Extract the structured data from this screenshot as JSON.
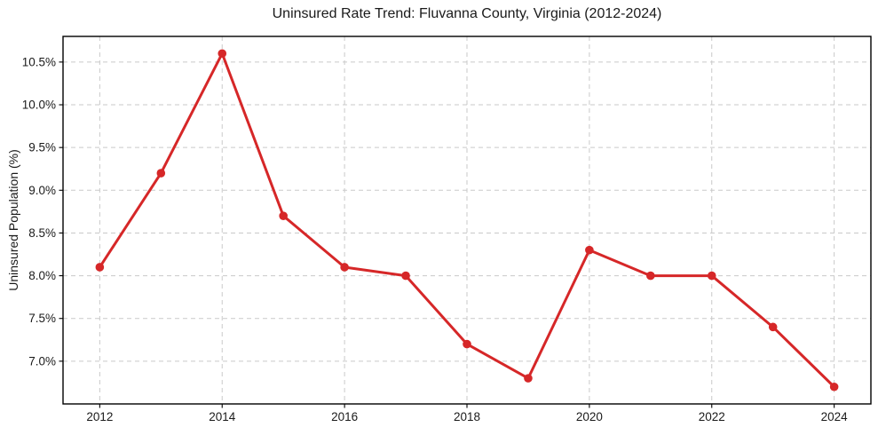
{
  "chart_data": {
    "type": "line",
    "title": "Uninsured Rate Trend: Fluvanna County, Virginia (2012-2024)",
    "ylabel": "Uninsured Population (%)",
    "xlabel": "",
    "x": [
      2012,
      2013,
      2014,
      2015,
      2016,
      2017,
      2018,
      2019,
      2020,
      2021,
      2022,
      2023,
      2024
    ],
    "values": [
      8.1,
      9.2,
      10.6,
      8.7,
      8.1,
      8.0,
      7.2,
      6.8,
      8.3,
      8.0,
      8.0,
      7.4,
      6.7
    ],
    "xlim": [
      2011.4,
      2024.6
    ],
    "ylim": [
      6.5,
      10.8
    ],
    "xticks": [
      2012,
      2014,
      2016,
      2018,
      2020,
      2022,
      2024
    ],
    "xtick_labels": [
      "2012",
      "2014",
      "2016",
      "2018",
      "2020",
      "2022",
      "2024"
    ],
    "yticks": [
      7.0,
      7.5,
      8.0,
      8.5,
      9.0,
      9.5,
      10.0,
      10.5
    ],
    "ytick_labels": [
      "7.0%",
      "7.5%",
      "8.0%",
      "8.5%",
      "9.0%",
      "9.5%",
      "10.0%",
      "10.5%"
    ],
    "grid": true,
    "grid_style": "dashed",
    "legend": "none",
    "marker": "circle",
    "line_color": "#d62728",
    "grid_color": "#c9c9c9",
    "spine_color": "#000000",
    "text_color": "#1a1a1a",
    "background_color": "#ffffff"
  }
}
